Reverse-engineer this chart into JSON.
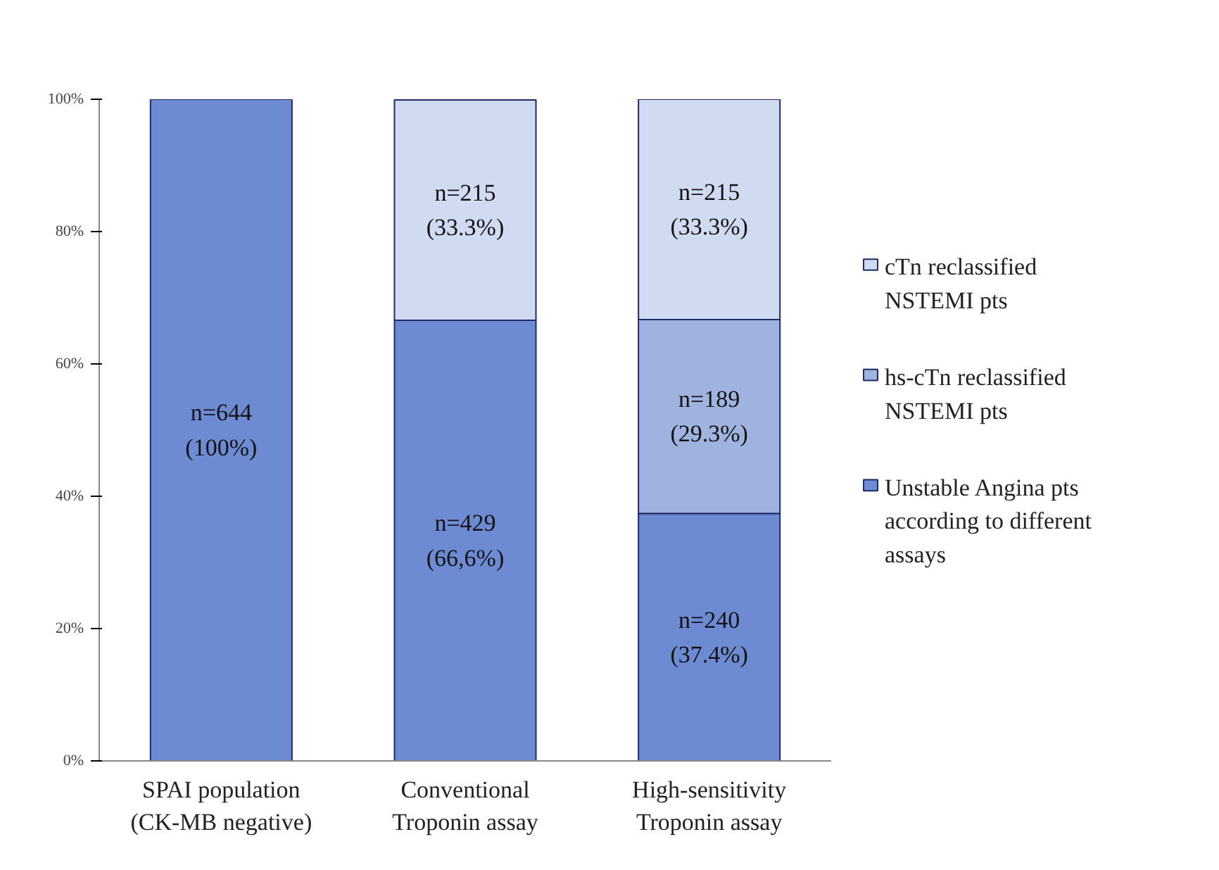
{
  "chart_data": {
    "type": "bar",
    "stacked": true,
    "categories": [
      "SPAI population\n(CK-MB negative)",
      "Conventional\nTroponin assay",
      "High-sensitivity\nTroponin assay"
    ],
    "series": [
      {
        "name": "Unstable Angina pts\naccording to different\nassays",
        "color": "#6d8bd3",
        "values": [
          100,
          66.6,
          37.4
        ],
        "value_labels": [
          "n=644\n(100%)",
          "n=429\n(66,6%)",
          "n=240\n(37.4%)"
        ]
      },
      {
        "name": "hs-cTn reclassified\nNSTEMI pts",
        "color": "#9fb2e0",
        "values": [
          null,
          null,
          29.3
        ],
        "value_labels": [
          null,
          null,
          "n=189\n(29.3%)"
        ]
      },
      {
        "name": " cTn reclassified\nNSTEMI pts",
        "color": "#d0daf1",
        "values": [
          null,
          33.3,
          33.3
        ],
        "value_labels": [
          null,
          "n=215\n(33.3%)",
          "n=215\n(33.3%)"
        ]
      }
    ],
    "ylim": [
      0,
      100
    ],
    "yticks": [
      {
        "value": 0,
        "label": "0%"
      },
      {
        "value": 20,
        "label": "20%"
      },
      {
        "value": 40,
        "label": "40%"
      },
      {
        "value": 60,
        "label": "60%"
      },
      {
        "value": 80,
        "label": "80%"
      },
      {
        "value": 100,
        "label": "100%"
      }
    ],
    "grid": false,
    "legend": "right"
  }
}
